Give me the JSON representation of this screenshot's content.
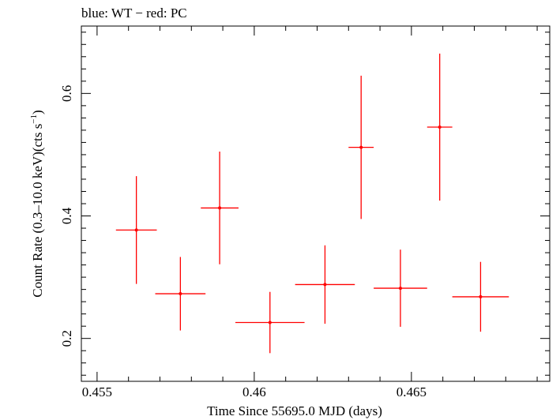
{
  "chart_data": {
    "type": "scatter",
    "title": "blue: WT − red: PC",
    "xlabel": "Time Since 55695.0 MJD (days)",
    "ylabel_main": "Count Rate (0.3–10.0 keV)(cts s",
    "ylabel_sup": "−1",
    "ylabel_end": ")",
    "xlim": [
      0.4545,
      0.4694
    ],
    "ylim": [
      0.13,
      0.71
    ],
    "x_ticks": [
      0.455,
      0.46,
      0.465
    ],
    "x_tick_labels": [
      "0.455",
      "0.46",
      "0.465"
    ],
    "y_ticks": [
      0.2,
      0.4,
      0.6
    ],
    "y_tick_labels": [
      "0.2",
      "0.4",
      "0.6"
    ],
    "grid": false,
    "series": [
      {
        "color": "#ff0000",
        "points": [
          {
            "x": 0.45625,
            "xerr": 0.00065,
            "y": 0.377,
            "yerr": 0.088
          },
          {
            "x": 0.45765,
            "xerr": 0.0008,
            "y": 0.273,
            "yerr": 0.06
          },
          {
            "x": 0.4589,
            "xerr": 0.0006,
            "y": 0.413,
            "yerr": 0.092
          },
          {
            "x": 0.4605,
            "xerr": 0.0011,
            "y": 0.226,
            "yerr": 0.05
          },
          {
            "x": 0.46225,
            "xerr": 0.00095,
            "y": 0.288,
            "yerr": 0.064
          },
          {
            "x": 0.4634,
            "xerr": 0.0004,
            "y": 0.512,
            "yerr": 0.117
          },
          {
            "x": 0.46465,
            "xerr": 0.00085,
            "y": 0.282,
            "yerr": 0.063
          },
          {
            "x": 0.4659,
            "xerr": 0.0004,
            "y": 0.545,
            "yerr": 0.12
          },
          {
            "x": 0.4672,
            "xerr": 0.0009,
            "y": 0.268,
            "yerr": 0.057
          }
        ]
      }
    ]
  }
}
